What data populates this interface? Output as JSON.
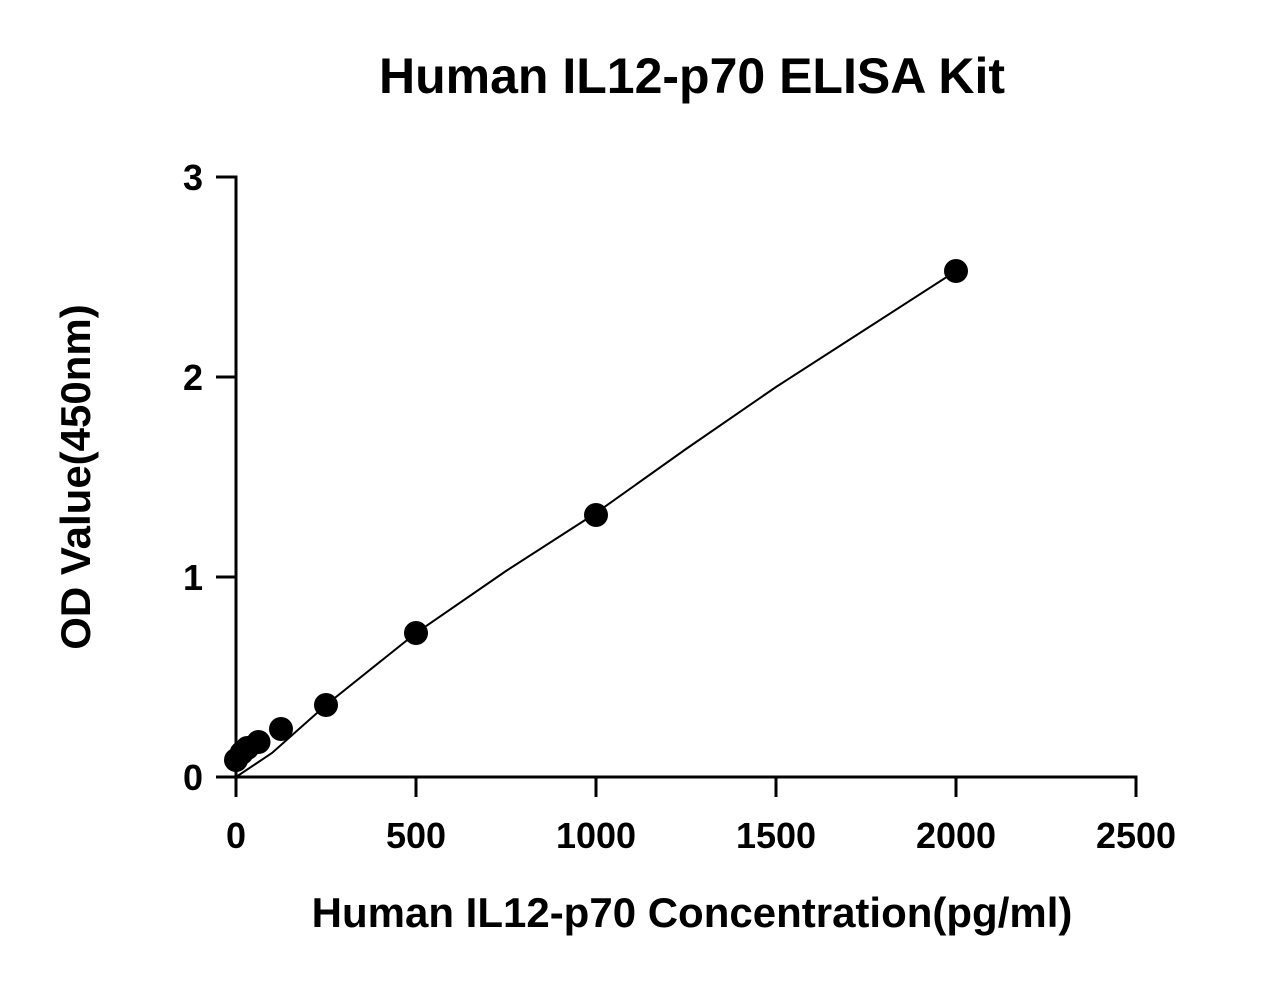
{
  "chart_data": {
    "type": "scatter",
    "title": "Human IL12-p70  ELISA Kit",
    "xlabel": "Human IL12-p70  Concentration(pg/ml)",
    "ylabel": "OD Value(450nm)",
    "xlim": [
      0,
      2500
    ],
    "ylim": [
      0,
      3
    ],
    "xticks": [
      0,
      500,
      1000,
      1500,
      2000,
      2500
    ],
    "yticks": [
      0,
      1,
      2,
      3
    ],
    "grid": false,
    "legend": "none",
    "series": [
      {
        "points": [
          {
            "x": 0,
            "y": 0.085
          },
          {
            "x": 15.6,
            "y": 0.12
          },
          {
            "x": 31.25,
            "y": 0.145
          },
          {
            "x": 62.5,
            "y": 0.175
          },
          {
            "x": 125,
            "y": 0.24
          },
          {
            "x": 250,
            "y": 0.36
          },
          {
            "x": 500,
            "y": 0.72
          },
          {
            "x": 1000,
            "y": 1.31
          },
          {
            "x": 2000,
            "y": 2.53
          }
        ],
        "fit_curve": [
          {
            "x": 0,
            "y": 0.0
          },
          {
            "x": 100,
            "y": 0.12
          },
          {
            "x": 250,
            "y": 0.36
          },
          {
            "x": 500,
            "y": 0.72
          },
          {
            "x": 750,
            "y": 1.03
          },
          {
            "x": 1000,
            "y": 1.32
          },
          {
            "x": 1250,
            "y": 1.64
          },
          {
            "x": 1500,
            "y": 1.95
          },
          {
            "x": 1750,
            "y": 2.24
          },
          {
            "x": 2000,
            "y": 2.53
          }
        ],
        "color": "#000000"
      }
    ]
  }
}
